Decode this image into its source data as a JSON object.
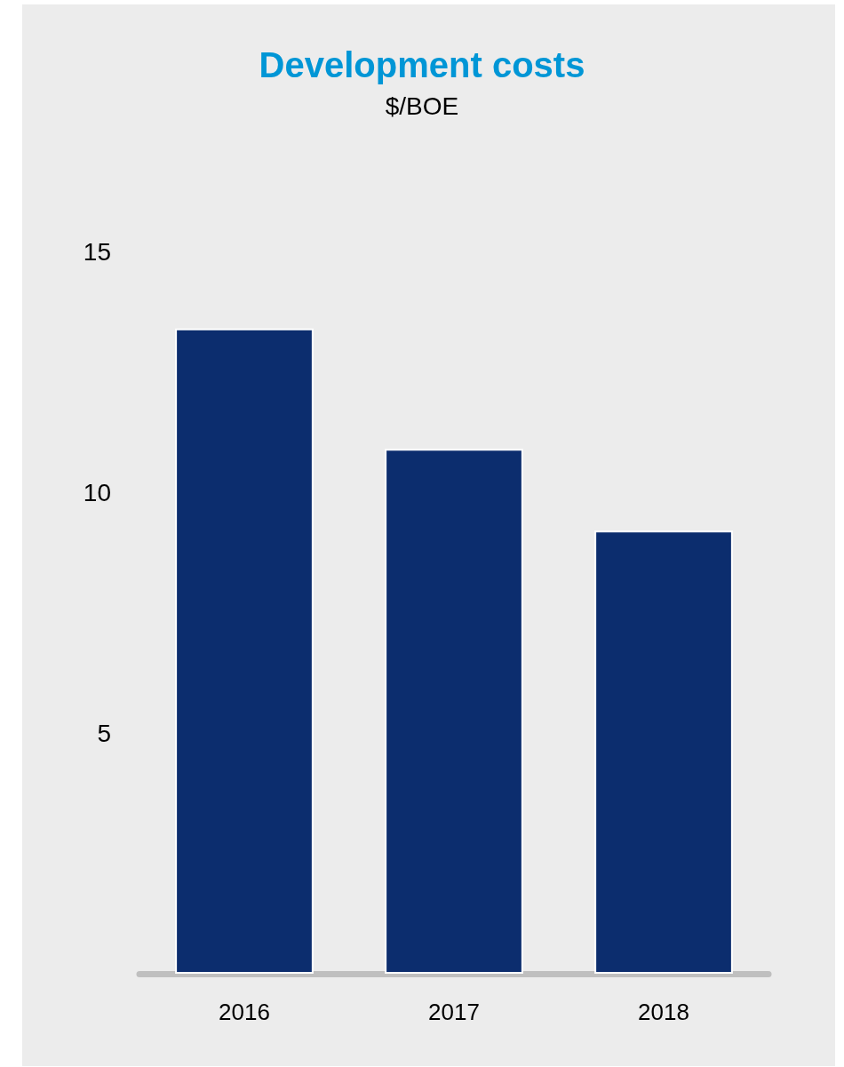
{
  "chart_data": {
    "type": "bar",
    "title": "Development costs",
    "subtitle": "$/BOE",
    "categories": [
      "2016",
      "2017",
      "2018"
    ],
    "values": [
      13.4,
      10.9,
      9.2
    ],
    "color": "#0c2d6e",
    "ylim": [
      0,
      15
    ],
    "yticks": [
      5,
      10,
      15
    ],
    "grid": false
  }
}
